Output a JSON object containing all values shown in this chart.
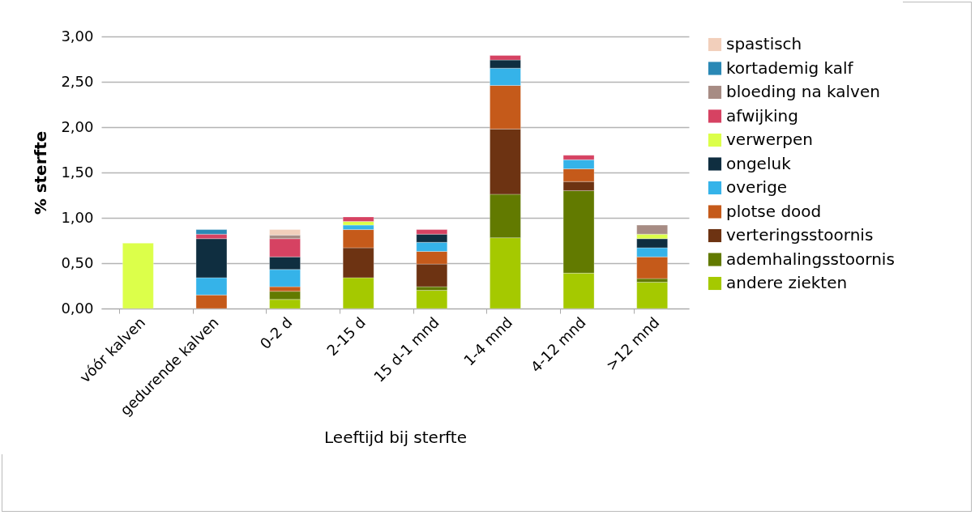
{
  "chart_data": {
    "type": "bar",
    "stacked": true,
    "xlabel": "Leeftijd bij sterfte",
    "ylabel": "% sterfte",
    "categories": [
      "vóór kalven",
      "gedurende kalven",
      "0-2 d",
      "2-15 d",
      "15 d-1 mnd",
      "1-4 mnd",
      "4-12 mnd",
      ">12 mnd"
    ],
    "series": [
      {
        "name": "andere ziekten",
        "color": "#a5c900",
        "values": [
          null,
          null,
          0.1,
          0.34,
          0.2,
          0.78,
          0.39,
          0.29
        ]
      },
      {
        "name": "ademhalingsstoornis",
        "color": "#627a00",
        "values": [
          null,
          null,
          0.09,
          null,
          0.04,
          0.48,
          0.91,
          0.04
        ]
      },
      {
        "name": "verteringsstoornis",
        "color": "#6d3312",
        "values": [
          null,
          null,
          null,
          0.33,
          0.25,
          0.72,
          0.1,
          null
        ]
      },
      {
        "name": "plotse dood",
        "color": "#c55a1a",
        "values": [
          null,
          0.15,
          0.05,
          0.2,
          0.14,
          0.48,
          0.14,
          0.24
        ]
      },
      {
        "name": "overige",
        "color": "#35b3e9",
        "values": [
          null,
          0.19,
          0.19,
          0.05,
          0.1,
          0.19,
          0.1,
          0.1
        ]
      },
      {
        "name": "ongeluk",
        "color": "#0f2e40",
        "values": [
          null,
          0.43,
          0.14,
          null,
          0.09,
          0.09,
          null,
          0.1
        ]
      },
      {
        "name": "verwerpen",
        "color": "#dcff4a",
        "values": [
          0.72,
          null,
          null,
          0.04,
          null,
          null,
          null,
          0.05
        ]
      },
      {
        "name": "afwijking",
        "color": "#d64262",
        "values": [
          null,
          0.05,
          0.2,
          0.05,
          0.05,
          0.05,
          0.05,
          null
        ]
      },
      {
        "name": "bloeding na kalven",
        "color": "#a78c84",
        "values": [
          null,
          null,
          0.04,
          null,
          null,
          null,
          null,
          0.1
        ]
      },
      {
        "name": "kortademig kalf",
        "color": "#2a88b5",
        "values": [
          null,
          0.05,
          null,
          null,
          null,
          null,
          null,
          null
        ]
      },
      {
        "name": "spastisch",
        "color": "#f2cfbb",
        "values": [
          null,
          null,
          0.06,
          null,
          null,
          null,
          null,
          null
        ]
      }
    ],
    "ylim": [
      0,
      3
    ],
    "yticks": [
      {
        "value": 0,
        "label": "0,00"
      },
      {
        "value": 0.5,
        "label": "0,50"
      },
      {
        "value": 1,
        "label": "1,00"
      },
      {
        "value": 1.5,
        "label": "1,50"
      },
      {
        "value": 2,
        "label": "2,00"
      },
      {
        "value": 2.5,
        "label": "2,50"
      },
      {
        "value": 3,
        "label": "3,00"
      }
    ],
    "grid": "y",
    "legend": "right"
  }
}
